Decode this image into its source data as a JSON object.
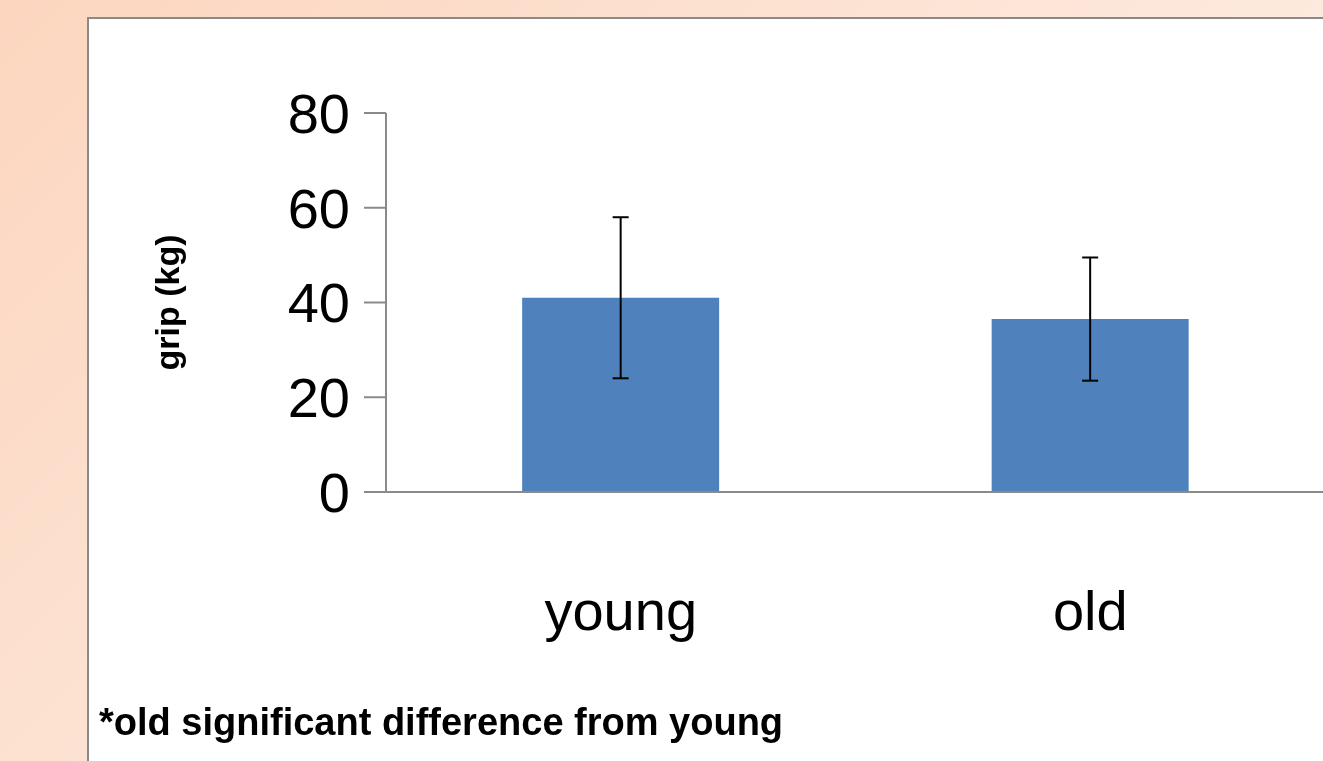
{
  "chart_data": {
    "type": "bar",
    "ylabel": "grip (kg)",
    "categories": [
      "young",
      "old"
    ],
    "values": [
      41,
      36.5
    ],
    "errors": [
      17,
      13
    ],
    "color": "#4f81bd",
    "ylim": [
      0,
      80
    ],
    "yticks": [
      0,
      20,
      40,
      60,
      80
    ],
    "grid": false,
    "legend": false,
    "annotations": [
      "*old significant difference from young"
    ]
  }
}
